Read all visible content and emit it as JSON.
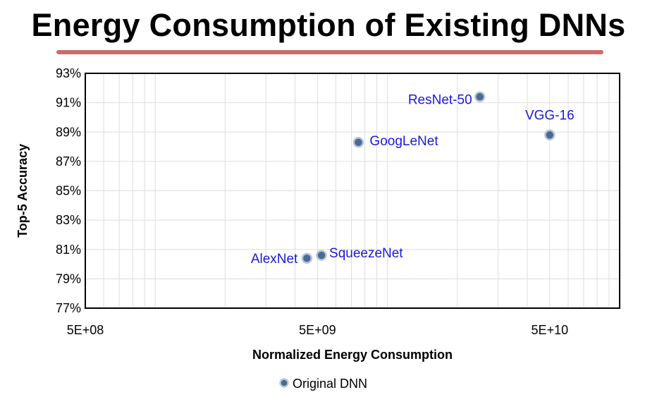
{
  "slide": {
    "title": "Energy Consumption of Existing DNNs"
  },
  "colors": {
    "title_rule": "#cd6b6b",
    "marker_fill": "#4a6a94",
    "marker_edge": "#b8c6d8",
    "point_label": "#1a1adc",
    "grid": "#dddddd",
    "frame": "#000000"
  },
  "chart_data": {
    "type": "scatter",
    "title": "",
    "xlabel": "Normalized Energy Consumption",
    "ylabel": "Top-5 Accuracy",
    "xscale": "log",
    "xlim": [
      500000000,
      100000000000
    ],
    "ylim": [
      77,
      93
    ],
    "x_ticks": [
      "5E+08",
      "5E+09",
      "5E+10"
    ],
    "y_ticks": [
      "77%",
      "79%",
      "81%",
      "83%",
      "85%",
      "87%",
      "89%",
      "91%",
      "93%"
    ],
    "grid": true,
    "legend_position": "bottom",
    "series": [
      {
        "name": "Original DNN",
        "points": [
          {
            "label": "AlexNet",
            "x": 4500000000,
            "y": 80.4
          },
          {
            "label": "SqueezeNet",
            "x": 5200000000,
            "y": 80.6
          },
          {
            "label": "GoogLeNet",
            "x": 7500000000,
            "y": 88.3
          },
          {
            "label": "ResNet-50",
            "x": 25000000000,
            "y": 91.4
          },
          {
            "label": "VGG-16",
            "x": 50000000000,
            "y": 88.8
          }
        ]
      }
    ]
  }
}
